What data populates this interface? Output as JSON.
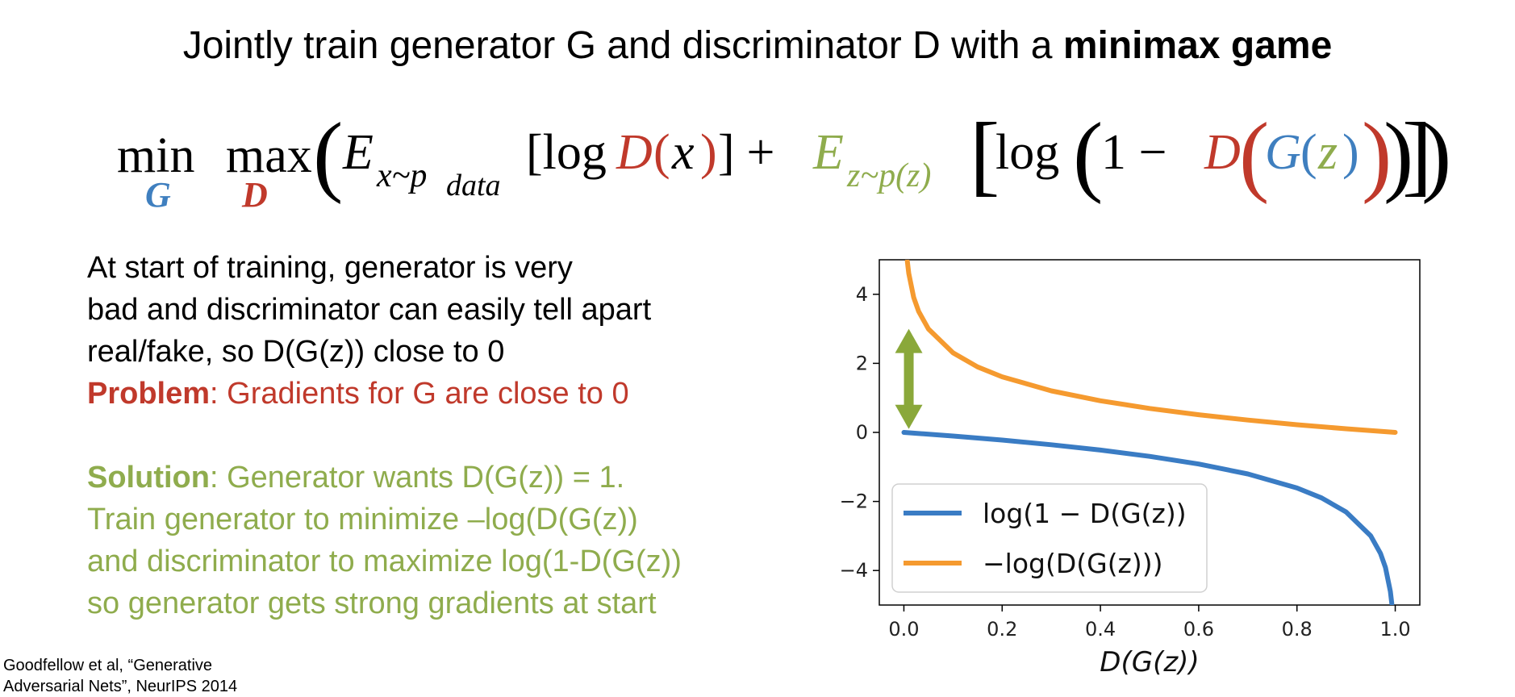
{
  "slide": {
    "title_prefix": "Jointly train generator G and discriminator D with a ",
    "title_bold": "minimax game",
    "equation": {
      "min": "min",
      "min_sub": "G",
      "max": "max",
      "max_sub": "D",
      "open_paren": "(",
      "e1": "E",
      "e1_sub": "x~p",
      "e1_subsub": "data",
      "bracket1_open": "[log ",
      "d1": "D",
      "x_open": "(",
      "x": "x",
      "x_close": ")",
      "bracket1_close": "]",
      "plus": " + ",
      "e2": "E",
      "e2_sub": "z~p(z)",
      "bracket2_open": "[",
      "log2": "log",
      "paren2_open": "(",
      "one_minus": "1 − ",
      "d2": "D",
      "d2_open": "(",
      "g": "G",
      "g_open": "(",
      "z": "z",
      "g_close": ")",
      "d2_close": ")",
      "paren2_close": ")",
      "bracket2_close": "]",
      "close_paren": ")"
    },
    "text": {
      "line1": "At start of training, generator is very",
      "line2": "bad and discriminator can easily tell apart",
      "line3": "real/fake, so D(G(z)) close to 0",
      "problem_label": "Problem",
      "problem_text": ": Gradients for G are close to 0",
      "solution_label": "Solution",
      "solution_text": ": Generator wants D(G(z)) = 1.",
      "sol_line2": "Train generator to minimize –log(D(G(z))",
      "sol_line3": "and discriminator to maximize log(1-D(G(z))",
      "sol_line4": "so generator gets strong gradients at start"
    },
    "citation": {
      "line1": "Goodfellow et al, “Generative",
      "line2": "Adversarial Nets”, NeurIPS 2014"
    }
  },
  "colors": {
    "red": "#c0392b",
    "blue": "#3f7fbf",
    "green": "#8fac4d",
    "series_blue": "#3a7cc4",
    "series_orange": "#f59a2f",
    "arrow_green": "#8aa83a"
  },
  "chart_data": {
    "type": "line",
    "title": "",
    "xlabel": "D(G(z))",
    "ylabel": "",
    "xlim": [
      -0.05,
      1.05
    ],
    "ylim": [
      -5,
      5
    ],
    "xticks": [
      0.0,
      0.2,
      0.4,
      0.6,
      0.8,
      1.0
    ],
    "xtick_labels": [
      "0.0",
      "0.2",
      "0.4",
      "0.6",
      "0.8",
      "1.0"
    ],
    "yticks": [
      -4,
      -2,
      0,
      2,
      4
    ],
    "ytick_labels": [
      "−4",
      "−2",
      "0",
      "2",
      "4"
    ],
    "legend_position": "lower-left",
    "series": [
      {
        "name": "log(1 − D(G(z))",
        "color": "#3a7cc4",
        "x": [
          0.0,
          0.1,
          0.2,
          0.3,
          0.4,
          0.5,
          0.6,
          0.7,
          0.8,
          0.85,
          0.9,
          0.95,
          0.97,
          0.98,
          0.99,
          0.993
        ],
        "y": [
          0.0,
          -0.105,
          -0.223,
          -0.357,
          -0.511,
          -0.693,
          -0.916,
          -1.204,
          -1.609,
          -1.897,
          -2.303,
          -2.996,
          -3.507,
          -3.912,
          -4.605,
          -4.962
        ]
      },
      {
        "name": "−log(D(G(z)))",
        "color": "#f59a2f",
        "x": [
          0.007,
          0.01,
          0.02,
          0.03,
          0.05,
          0.1,
          0.15,
          0.2,
          0.3,
          0.4,
          0.5,
          0.6,
          0.7,
          0.8,
          0.9,
          1.0
        ],
        "y": [
          4.962,
          4.605,
          3.912,
          3.507,
          2.996,
          2.303,
          1.897,
          1.609,
          1.204,
          0.916,
          0.693,
          0.511,
          0.357,
          0.223,
          0.105,
          0.0
        ]
      }
    ],
    "annotation": {
      "type": "double-arrow",
      "color": "#8aa83a",
      "x": 0.01,
      "y_from": 0.1,
      "y_to": 3.0
    }
  }
}
